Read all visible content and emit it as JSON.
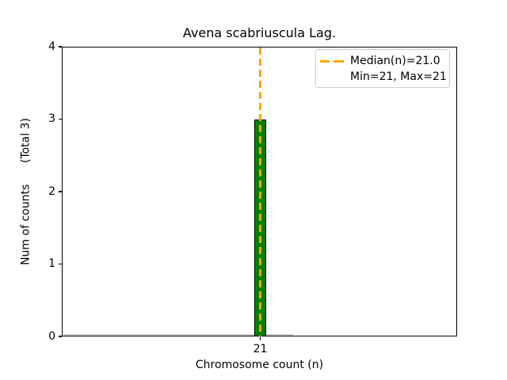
{
  "chart_data": {
    "type": "bar",
    "title": "Avena scabriuscula Lag.",
    "xlabel": "Chromosome count (n)",
    "ylabel": "Num of counts      (Total 3)",
    "categories": [
      21
    ],
    "values": [
      3
    ],
    "total_counts": 3,
    "median_n": 21.0,
    "min_n": 21,
    "max_n": 21,
    "ylim": [
      0,
      4
    ],
    "yticks": [
      0,
      1,
      2,
      3,
      4
    ],
    "xticks": [
      21
    ],
    "grid": false,
    "legend_position": "upper right",
    "legend_entries": [
      "Median(n)=21.0",
      "Min=21, Max=21"
    ],
    "colors": {
      "bar_fill": "#008000",
      "bar_edge": "#000000",
      "median_line": "#FFA500",
      "zero_baseline": "#cccccc",
      "spine": "#000000",
      "legend_border": "#cccccc",
      "background": "#ffffff"
    }
  }
}
